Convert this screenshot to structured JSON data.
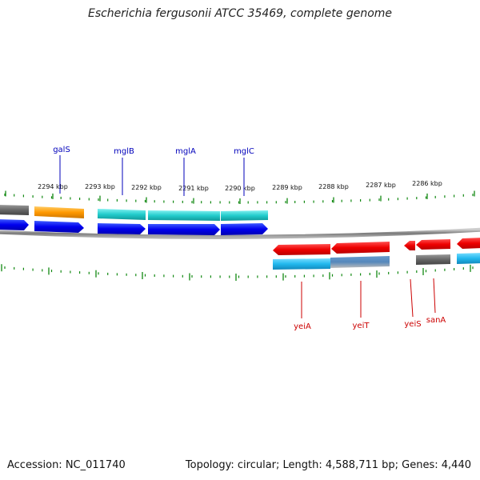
{
  "title": "Escherichia fergusonii ATCC 35469, complete genome",
  "footer": {
    "accession": "Accession: NC_011740",
    "topology": "Topology: circular; Length: 4,588,711 bp; Genes: 4,440"
  },
  "colors": {
    "backbone": "#8a8a8a",
    "tick": "#118811",
    "forward_label": "#0000bb",
    "reverse_label": "#cc0000"
  },
  "ticks": [
    "2294 kbp",
    "2293 kbp",
    "2292 kbp",
    "2291 kbp",
    "2290 kbp",
    "2289 kbp",
    "2288 kbp",
    "2287 kbp",
    "2286 kbp"
  ],
  "forward_genes": [
    {
      "name": "galS",
      "cds_color": "#0000ee",
      "feature_color": "#ff9900"
    },
    {
      "name": "mglB",
      "cds_color": "#0000ee",
      "feature_color": "#22cccc"
    },
    {
      "name": "mglA",
      "cds_color": "#0000ee",
      "feature_color": "#22cccc"
    },
    {
      "name": "mglC",
      "cds_color": "#0000ee",
      "feature_color": "#22cccc"
    }
  ],
  "reverse_genes": [
    {
      "name": "yeiA",
      "cds_color": "#ee0000",
      "feature_color": "#22b8ee"
    },
    {
      "name": "yeiT",
      "cds_color": "#ee0000",
      "feature_color": "#5588bb"
    },
    {
      "name": "yeiS",
      "cds_color": "#ee0000",
      "feature_color": ""
    },
    {
      "name": "sanA",
      "cds_color": "#ee0000",
      "feature_color": "#666666"
    }
  ]
}
